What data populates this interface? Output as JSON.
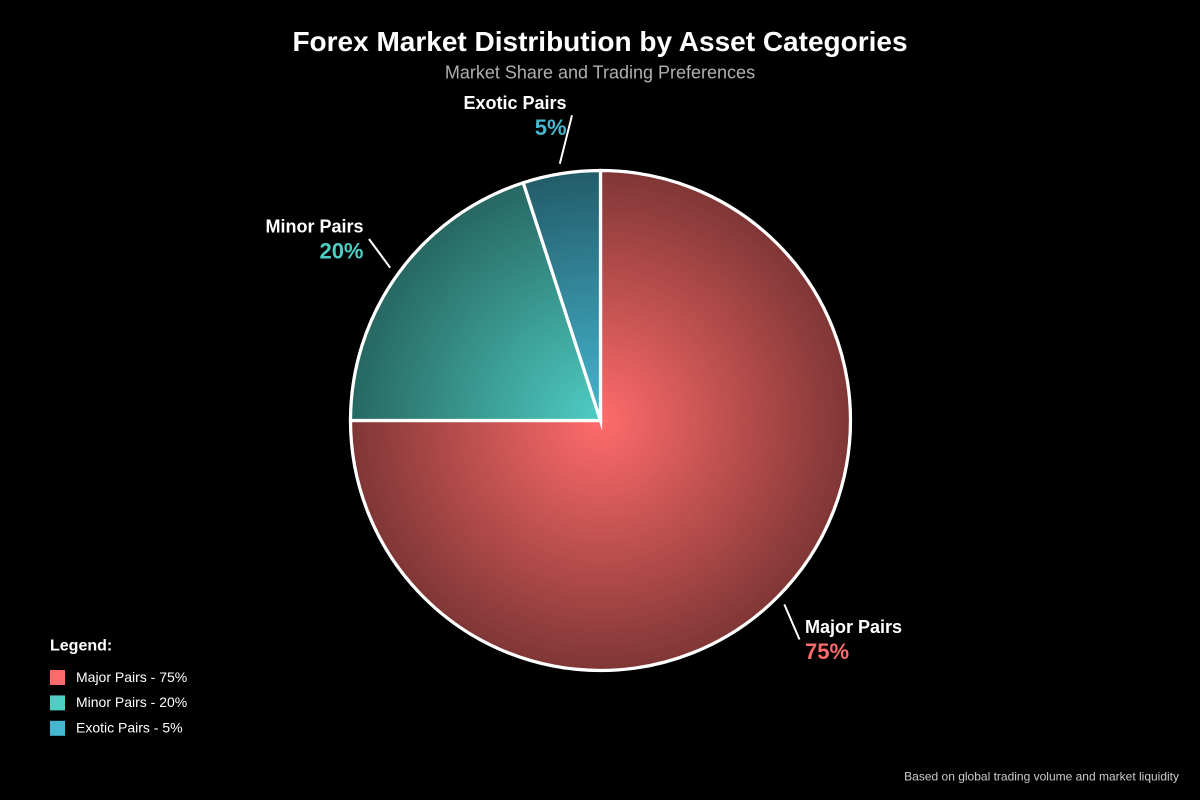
{
  "background_color": "#000000",
  "chart_data": {
    "type": "pie",
    "title": "Forex Market Distribution by Asset Categories",
    "subtitle": "Market Share and Trading Preferences",
    "unit": "%",
    "start_angle_deg": 0,
    "direction": "clockwise",
    "slices": [
      {
        "label": "Major Pairs",
        "value": 75,
        "color": "#ff6b6b"
      },
      {
        "label": "Minor Pairs",
        "value": 20,
        "color": "#4ecdc4"
      },
      {
        "label": "Exotic Pairs",
        "value": 5,
        "color": "#45b7d1"
      }
    ],
    "slice_border_color": "#ffffff",
    "fill_style": "radial gradient from base color at center to 50% darker at rim",
    "legend_position": "bottom-left"
  },
  "legend": {
    "title": "Legend:",
    "items": [
      {
        "label": "Major Pairs - 75%",
        "color": "#ff6b6b"
      },
      {
        "label": "Minor Pairs - 20%",
        "color": "#4ecdc4"
      },
      {
        "label": "Exotic Pairs - 5%",
        "color": "#45b7d1"
      }
    ]
  },
  "footer": {
    "note": "Based on global trading volume and market liquidity"
  },
  "text_colors": {
    "title": "#ffffff",
    "subtitle": "#b0b0b0",
    "slice_label": "#ffffff",
    "legend_text": "#ffffff",
    "footer": "#cccccc"
  }
}
